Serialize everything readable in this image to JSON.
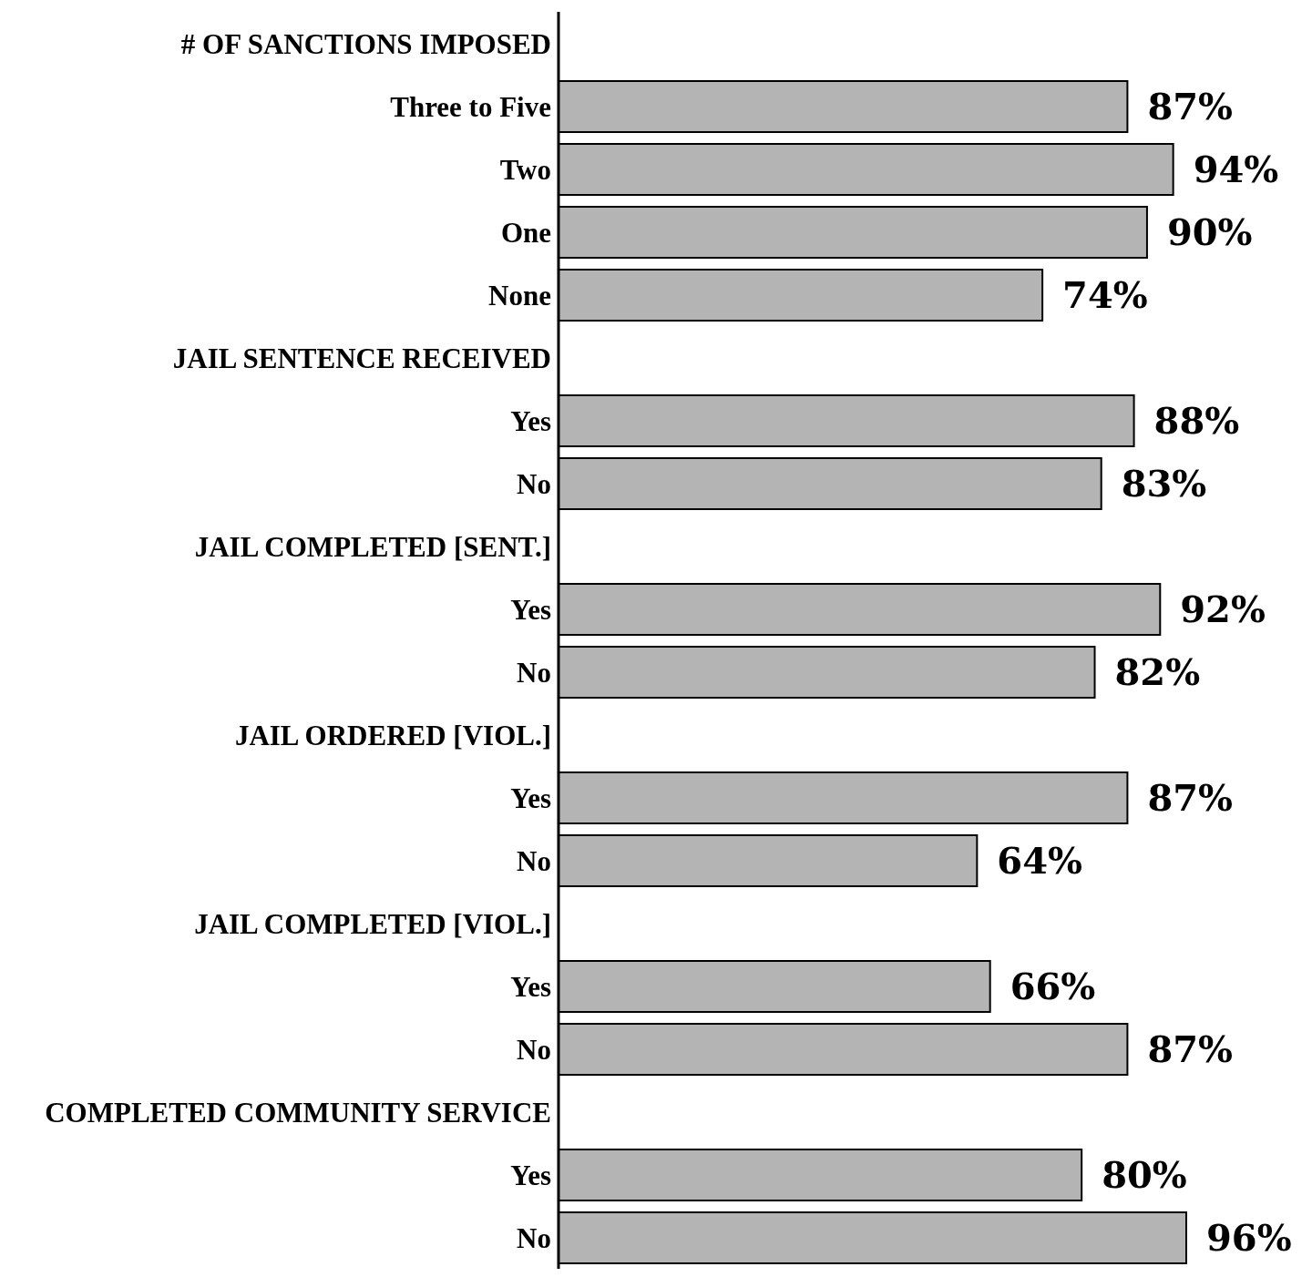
{
  "chart_data": {
    "type": "bar",
    "orientation": "horizontal",
    "categories": [
      "# OF SANCTIONS IMPOSED",
      "Three to Five",
      "Two",
      "One",
      "None",
      "JAIL SENTENCE RECEIVED",
      "Yes",
      "No",
      "JAIL COMPLETED [SENT.]",
      "Yes",
      "No",
      "JAIL ORDERED [VIOL.]",
      "Yes",
      "No",
      "JAIL COMPLETED [VIOL.]",
      "Yes",
      "No",
      "COMPLETED COMMUNITY SERVICE",
      "Yes",
      "No"
    ],
    "values": [
      null,
      87,
      94,
      90,
      74,
      null,
      88,
      83,
      null,
      92,
      82,
      null,
      87,
      64,
      null,
      66,
      87,
      null,
      80,
      96
    ],
    "value_labels": [
      null,
      "87%",
      "94%",
      "90%",
      "74%",
      null,
      "88%",
      "83%",
      null,
      "92%",
      "82%",
      null,
      "87%",
      "64%",
      null,
      "66%",
      "87%",
      null,
      "80%",
      "96%"
    ],
    "color": "#b4b4b4"
  }
}
